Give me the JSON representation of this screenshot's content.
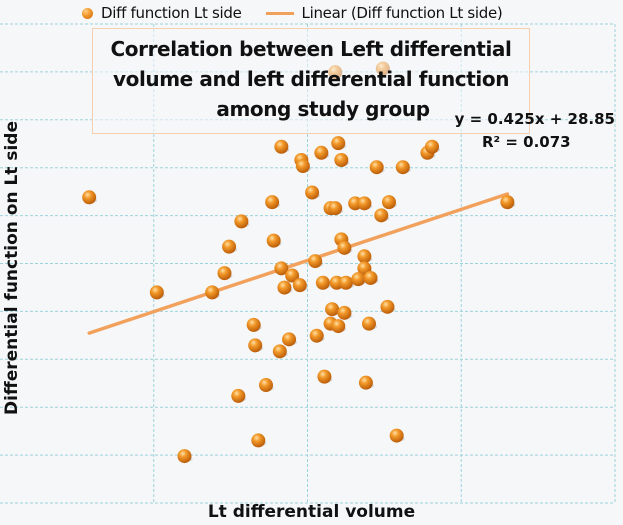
{
  "chart_data": {
    "type": "scatter",
    "title": "Correlation between Left differential volume and left differential function among study group",
    "title_lines": [
      "Correlation between Left differential",
      "volume and left differential function",
      "among study group"
    ],
    "xlabel": "Lt differential volume",
    "ylabel": "Differential function on Lt side",
    "xlim": [
      20,
      60
    ],
    "ylim": [
      25.7,
      65.5
    ],
    "x_tick_labels_visible": false,
    "y_tick_labels_visible": false,
    "grid": true,
    "legend_position": "top",
    "series": [
      {
        "name": "Diff function  Lt side",
        "color": "#f0901f",
        "points": [
          [
            25.8,
            51.1
          ],
          [
            41.8,
            61.5
          ],
          [
            44.9,
            61.8
          ],
          [
            38.3,
            55.3
          ],
          [
            42.0,
            55.6
          ],
          [
            40.9,
            54.8
          ],
          [
            39.6,
            54.2
          ],
          [
            39.7,
            53.7
          ],
          [
            42.2,
            54.2
          ],
          [
            44.5,
            53.6
          ],
          [
            46.2,
            53.6
          ],
          [
            47.8,
            54.8
          ],
          [
            48.1,
            55.3
          ],
          [
            40.3,
            51.5
          ],
          [
            37.7,
            50.7
          ],
          [
            41.5,
            50.2
          ],
          [
            41.8,
            50.2
          ],
          [
            43.1,
            50.6
          ],
          [
            43.7,
            50.6
          ],
          [
            45.3,
            50.7
          ],
          [
            44.8,
            49.6
          ],
          [
            35.7,
            49.1
          ],
          [
            42.2,
            47.6
          ],
          [
            42.4,
            46.9
          ],
          [
            34.9,
            47.0
          ],
          [
            37.8,
            47.5
          ],
          [
            43.7,
            46.2
          ],
          [
            40.5,
            45.8
          ],
          [
            43.7,
            45.2
          ],
          [
            34.6,
            44.8
          ],
          [
            38.3,
            45.2
          ],
          [
            39.0,
            44.6
          ],
          [
            38.5,
            43.6
          ],
          [
            39.5,
            43.8
          ],
          [
            41.0,
            44.0
          ],
          [
            41.9,
            44.0
          ],
          [
            42.5,
            44.0
          ],
          [
            43.3,
            44.3
          ],
          [
            44.1,
            44.4
          ],
          [
            30.2,
            43.2
          ],
          [
            33.8,
            43.2
          ],
          [
            41.6,
            41.8
          ],
          [
            42.4,
            41.5
          ],
          [
            45.2,
            42.0
          ],
          [
            41.5,
            40.6
          ],
          [
            42.0,
            40.4
          ],
          [
            44.0,
            40.6
          ],
          [
            36.5,
            40.5
          ],
          [
            36.6,
            38.8
          ],
          [
            38.8,
            39.3
          ],
          [
            40.6,
            39.6
          ],
          [
            38.2,
            38.3
          ],
          [
            41.1,
            36.2
          ],
          [
            43.8,
            35.7
          ],
          [
            37.3,
            35.5
          ],
          [
            35.5,
            34.6
          ],
          [
            36.8,
            30.9
          ],
          [
            45.8,
            31.3
          ],
          [
            32.0,
            29.6
          ],
          [
            53.0,
            50.7
          ]
        ]
      }
    ],
    "trendline": {
      "name": "Linear (Diff function  Lt side)",
      "color": "#f2a15c",
      "slope": 0.425,
      "intercept": 28.85,
      "x_range": [
        25.8,
        53.0
      ],
      "equation_label": "y = 0.425x + 28.85",
      "r2_label": "R² = 0.073"
    },
    "gridline_count": {
      "x": 4,
      "y": 10
    },
    "grid_color": "#9fd3dc"
  }
}
